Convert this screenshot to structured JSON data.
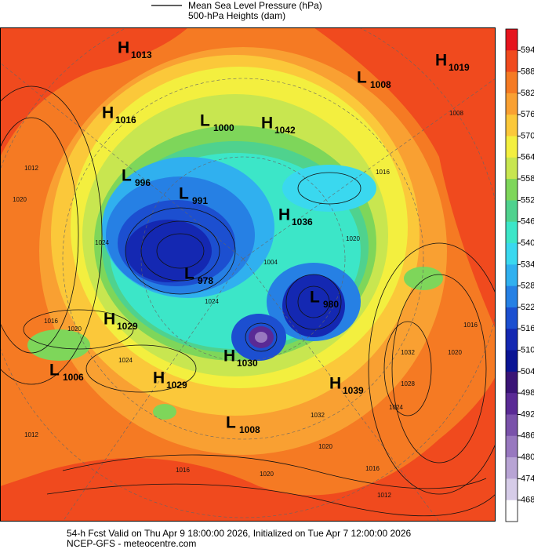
{
  "header": {
    "legend_lines": [
      "Mean Sea Level Pressure (hPa)",
      "500-hPa Heights (dam)"
    ]
  },
  "colorbar": {
    "labels": [
      "594",
      "588",
      "582",
      "576",
      "570",
      "564",
      "558",
      "552",
      "546",
      "540",
      "534",
      "528",
      "522",
      "516",
      "510",
      "504",
      "498",
      "492",
      "486",
      "480",
      "474",
      "468"
    ],
    "colors": [
      "#e6141e",
      "#f04a1e",
      "#f57a23",
      "#f9a032",
      "#fbc83a",
      "#f3ef3f",
      "#c8e650",
      "#7ed65a",
      "#4fd28e",
      "#3ce6c8",
      "#3ad8ef",
      "#30b0ef",
      "#2680e4",
      "#1c4fd0",
      "#1428b2",
      "#0a1494",
      "#3a1476",
      "#5a2a95",
      "#7a52aa",
      "#9878bf",
      "#b8a4d4",
      "#d6cce8",
      "#ffffff"
    ]
  },
  "centers": [
    {
      "letter": "H",
      "value": "1013"
    },
    {
      "letter": "H",
      "value": "1016"
    },
    {
      "letter": "L",
      "value": "1000"
    },
    {
      "letter": "H",
      "value": "1042"
    },
    {
      "letter": "L",
      "value": "1008"
    },
    {
      "letter": "H",
      "value": "1019"
    },
    {
      "letter": "L",
      "value": "996"
    },
    {
      "letter": "L",
      "value": "991"
    },
    {
      "letter": "H",
      "value": "1036"
    },
    {
      "letter": "L",
      "value": "978"
    },
    {
      "letter": "L",
      "value": "980"
    },
    {
      "letter": "H",
      "value": "1029"
    },
    {
      "letter": "H",
      "value": "1030"
    },
    {
      "letter": "L",
      "value": "1006"
    },
    {
      "letter": "H",
      "value": "1029"
    },
    {
      "letter": "H",
      "value": "1039"
    },
    {
      "letter": "L",
      "value": "1008"
    }
  ],
  "contour_labels": [
    "1012",
    "1020",
    "1024",
    "1016",
    "1020",
    "1024",
    "1012",
    "1016",
    "1020",
    "1016",
    "1012",
    "1024",
    "1028",
    "1032",
    "1020",
    "1016",
    "1008",
    "1016",
    "1020",
    "1024",
    "1004",
    "1032",
    "1020"
  ],
  "footer": [
    "54-h Fcst Valid on Thu Apr  9 18:00:00 2026, Initialized on Tue Apr  7 12:00:00 2026",
    "NCEP-GFS  - meteocentre.com"
  ]
}
